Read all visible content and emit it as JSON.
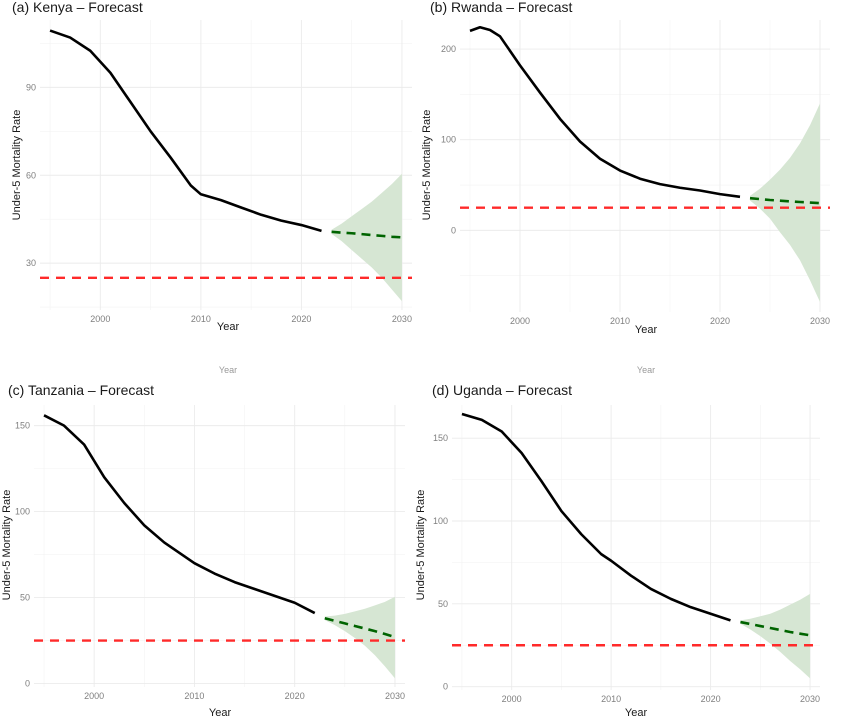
{
  "figure": {
    "cut_fragments": [
      "Year",
      "Year"
    ]
  },
  "chart_data": [
    {
      "type": "line",
      "title": "(a)  Kenya  –  Forecast",
      "xlabel": "Year",
      "ylabel": "Under-5 Mortality Rate",
      "xlim": [
        1994,
        2031
      ],
      "ylim": [
        14,
        113
      ],
      "xticks": [
        2000,
        2010,
        2020,
        2030
      ],
      "yticks": [
        30,
        60,
        90
      ],
      "grid": true,
      "colors": {
        "historical": "#000000",
        "forecast": "#006400",
        "band": "#d6e6d3",
        "target": "#ff2a2a"
      },
      "target": 25,
      "historical": {
        "x": [
          1995,
          1997,
          1999,
          2001,
          2003,
          2005,
          2007,
          2009,
          2010,
          2012,
          2014,
          2016,
          2018,
          2020,
          2022
        ],
        "y": [
          109.4,
          107.0,
          102.5,
          95.0,
          85.0,
          75.0,
          66.0,
          56.5,
          53.5,
          51.5,
          49.0,
          46.5,
          44.5,
          43.0,
          41.0
        ]
      },
      "forecast": {
        "x": [
          2023,
          2024,
          2025,
          2026,
          2027,
          2028,
          2029,
          2030
        ],
        "y": [
          40.7,
          40.4,
          40.2,
          39.9,
          39.6,
          39.3,
          39.0,
          38.8
        ],
        "lower": [
          40.0,
          37.5,
          34.5,
          31.5,
          28.5,
          25.0,
          21.0,
          17.0
        ],
        "upper": [
          41.4,
          43.5,
          46.0,
          48.5,
          51.0,
          54.0,
          57.0,
          60.5
        ]
      }
    },
    {
      "type": "line",
      "title": "(b)  Rwanda  –  Forecast",
      "xlabel": "Year",
      "ylabel": "Under-5 Mortality Rate",
      "xlim": [
        1994,
        2031
      ],
      "ylim": [
        -90,
        232
      ],
      "xticks": [
        2000,
        2010,
        2020,
        2030
      ],
      "yticks": [
        0,
        100,
        200
      ],
      "grid": true,
      "colors": {
        "historical": "#000000",
        "forecast": "#006400",
        "band": "#d6e6d3",
        "target": "#ff2a2a"
      },
      "target": 25,
      "historical": {
        "x": [
          1995,
          1996,
          1997,
          1998,
          2000,
          2002,
          2004,
          2006,
          2008,
          2010,
          2012,
          2014,
          2016,
          2018,
          2020,
          2022
        ],
        "y": [
          220,
          224,
          221,
          214,
          182,
          152,
          123,
          98,
          79,
          66,
          57,
          51,
          47,
          44,
          40,
          37
        ]
      },
      "forecast": {
        "x": [
          2023,
          2024,
          2025,
          2026,
          2027,
          2028,
          2029,
          2030
        ],
        "y": [
          35.5,
          34.5,
          33.5,
          32.8,
          32.0,
          31.3,
          30.7,
          30.0
        ],
        "lower": [
          33.0,
          24.0,
          13.0,
          -2.0,
          -16.0,
          -33.0,
          -55.0,
          -79.0
        ],
        "upper": [
          38.0,
          46.0,
          56.0,
          67.0,
          80.0,
          96.0,
          116.0,
          140.0
        ]
      }
    },
    {
      "type": "line",
      "title": "(c)  Tanzania  –  Forecast",
      "xlabel": "Year",
      "ylabel": "Under-5 Mortality Rate",
      "xlim": [
        1994,
        2031
      ],
      "ylim": [
        -2,
        162
      ],
      "xticks": [
        2000,
        2010,
        2020,
        2030
      ],
      "yticks": [
        0,
        50,
        100,
        150
      ],
      "grid": true,
      "colors": {
        "historical": "#000000",
        "forecast": "#006400",
        "band": "#d6e6d3",
        "target": "#ff2a2a"
      },
      "target": 25,
      "historical": {
        "x": [
          1995,
          1997,
          1999,
          2001,
          2003,
          2005,
          2007,
          2009,
          2010,
          2012,
          2014,
          2016,
          2018,
          2020,
          2022
        ],
        "y": [
          156,
          150,
          139,
          120,
          105,
          92,
          82,
          74,
          70,
          64,
          59,
          55,
          51,
          47,
          41
        ]
      },
      "forecast": {
        "x": [
          2023,
          2024,
          2025,
          2026,
          2027,
          2028,
          2029,
          2030
        ],
        "y": [
          38.0,
          36.5,
          35.0,
          33.5,
          32.0,
          30.5,
          28.8,
          27.0
        ],
        "lower": [
          37.0,
          34.0,
          30.5,
          26.5,
          22.0,
          16.5,
          10.0,
          3.0
        ],
        "upper": [
          39.0,
          39.5,
          40.5,
          42.0,
          43.5,
          45.5,
          47.5,
          50.5
        ]
      }
    },
    {
      "type": "line",
      "title": "(d)  Uganda  –  Forecast",
      "xlabel": "Year",
      "ylabel": "Under-5 Mortality Rate",
      "xlim": [
        1994,
        2031
      ],
      "ylim": [
        -2,
        170
      ],
      "xticks": [
        2000,
        2010,
        2020,
        2030
      ],
      "yticks": [
        0,
        50,
        100,
        150
      ],
      "grid": true,
      "colors": {
        "historical": "#000000",
        "forecast": "#006400",
        "band": "#d6e6d3",
        "target": "#ff2a2a"
      },
      "target": 25,
      "historical": {
        "x": [
          1995,
          1997,
          1999,
          2001,
          2003,
          2005,
          2007,
          2009,
          2010,
          2012,
          2014,
          2016,
          2018,
          2020,
          2022
        ],
        "y": [
          164.6,
          161,
          154,
          141,
          124,
          106,
          92,
          80,
          76,
          67,
          59,
          53,
          48,
          44,
          40
        ]
      },
      "forecast": {
        "x": [
          2023,
          2024,
          2025,
          2026,
          2027,
          2028,
          2029,
          2030
        ],
        "y": [
          39.0,
          37.8,
          36.6,
          35.4,
          34.2,
          33.0,
          32.0,
          31.0
        ],
        "lower": [
          38.0,
          34.5,
          30.5,
          26.0,
          21.0,
          15.5,
          10.5,
          5.0
        ],
        "upper": [
          40.0,
          41.0,
          42.5,
          44.0,
          46.5,
          49.5,
          52.5,
          56.0
        ]
      }
    }
  ]
}
